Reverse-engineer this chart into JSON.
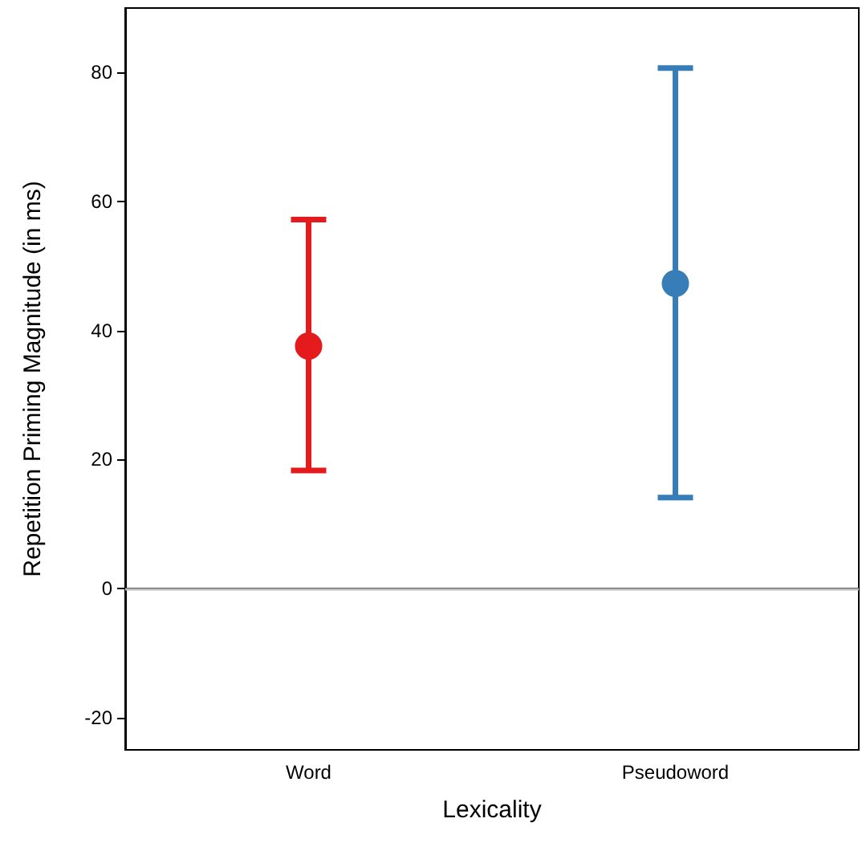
{
  "chart_data": {
    "type": "scatter",
    "xlabel": "Lexicality",
    "ylabel": "Repetition Priming Magnitude (in ms)",
    "categories": [
      "Word",
      "Pseudoword"
    ],
    "values": [
      37.6,
      47.3
    ],
    "colors": [
      "#e41a1c",
      "#377eb8"
    ],
    "errors": [
      [
        18.3,
        57.2
      ],
      [
        14.1,
        80.7
      ]
    ],
    "ylim": [
      -25,
      90
    ],
    "yticks": [
      -20,
      0,
      20,
      40,
      60,
      80
    ],
    "ref_lines": [
      {
        "axis": "y",
        "value": 0,
        "color": "#bbbbbb"
      }
    ],
    "grid": false,
    "marker": "circle"
  }
}
